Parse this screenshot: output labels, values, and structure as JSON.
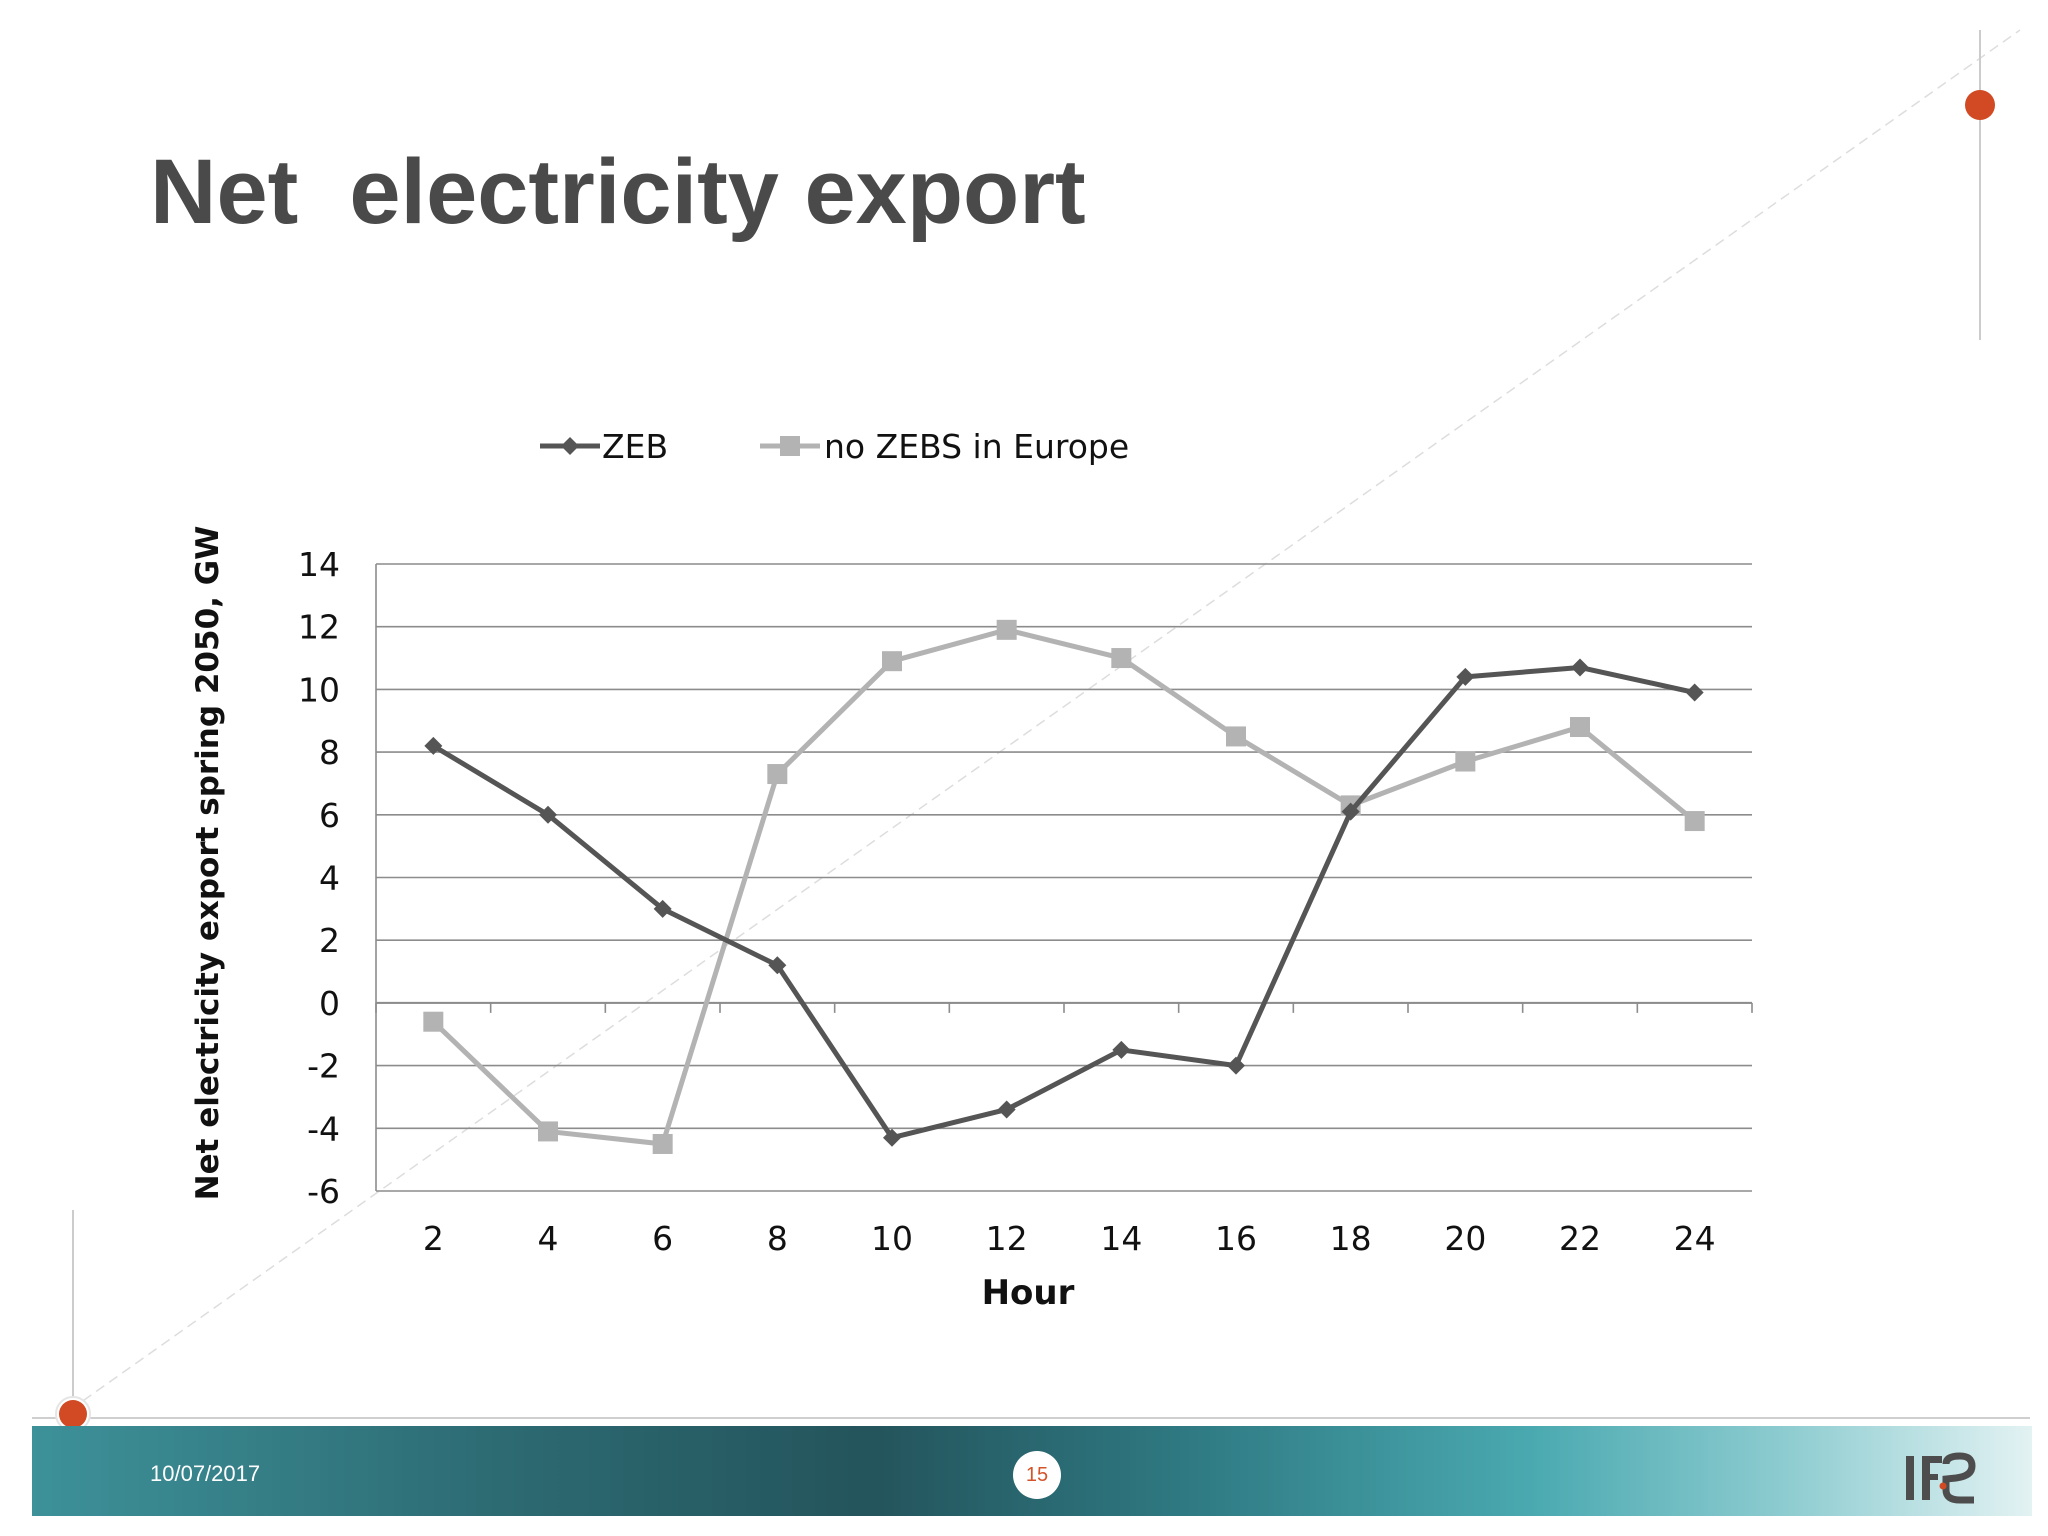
{
  "slide": {
    "title": "Net  electricity export",
    "date": "10/07/2017",
    "page_number": "15",
    "logo_text": "IFE"
  },
  "colors": {
    "accent_dot": "#d14a23",
    "series_zeb": "#555555",
    "series_no_zebs": "#b3b3b3",
    "title": "#4a4a4a"
  },
  "chart_data": {
    "type": "line",
    "x": [
      2,
      4,
      6,
      8,
      10,
      12,
      14,
      16,
      18,
      20,
      22,
      24
    ],
    "series": [
      {
        "name": "ZEB",
        "marker": "diamond",
        "color": "#555555",
        "values": [
          8.2,
          6.0,
          3.0,
          1.2,
          -4.3,
          -3.4,
          -1.5,
          -2.0,
          6.1,
          10.4,
          10.7,
          9.9
        ]
      },
      {
        "name": "no ZEBS in Europe",
        "marker": "square",
        "color": "#b3b3b3",
        "values": [
          -0.6,
          -4.1,
          -4.5,
          7.3,
          10.9,
          11.9,
          11.0,
          8.5,
          6.3,
          7.7,
          8.8,
          5.8
        ]
      }
    ],
    "xlabel": "Hour",
    "ylabel": "Net electricity export spring 2050, GW",
    "ylim": [
      -6,
      14
    ],
    "yticks": [
      14,
      12,
      10,
      8,
      6,
      4,
      2,
      0,
      -2,
      -4,
      -6
    ],
    "grid": true,
    "legend_position": "top"
  }
}
